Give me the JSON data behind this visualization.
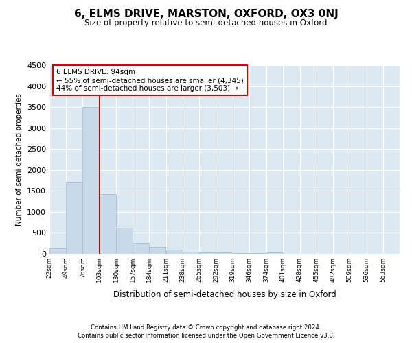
{
  "title": "6, ELMS DRIVE, MARSTON, OXFORD, OX3 0NJ",
  "subtitle": "Size of property relative to semi-detached houses in Oxford",
  "xlabel": "Distribution of semi-detached houses by size in Oxford",
  "ylabel": "Number of semi-detached properties",
  "footer_line1": "Contains HM Land Registry data © Crown copyright and database right 2024.",
  "footer_line2": "Contains public sector information licensed under the Open Government Licence v3.0.",
  "bar_color": "#c8d9ea",
  "bar_edge_color": "#a0b8cc",
  "fig_bg_color": "#ffffff",
  "plot_bg_color": "#dce8f2",
  "red_color": "#cc0000",
  "red_line_x": 103,
  "property_label": "6 ELMS DRIVE: 94sqm",
  "pct_smaller": 55,
  "count_smaller": "4,345",
  "pct_larger": 44,
  "count_larger": "3,503",
  "bin_starts": [
    22,
    49,
    76,
    103,
    130,
    157,
    184,
    211,
    238,
    265,
    292,
    319,
    346,
    374,
    401,
    428,
    455,
    482,
    509,
    536
  ],
  "bin_labels": [
    "22sqm",
    "49sqm",
    "76sqm",
    "103sqm",
    "130sqm",
    "157sqm",
    "184sqm",
    "211sqm",
    "238sqm",
    "265sqm",
    "292sqm",
    "319sqm",
    "346sqm",
    "374sqm",
    "401sqm",
    "428sqm",
    "455sqm",
    "482sqm",
    "509sqm",
    "536sqm",
    "563sqm"
  ],
  "bar_heights": [
    130,
    1700,
    3500,
    1430,
    630,
    255,
    160,
    95,
    55,
    40,
    30,
    20,
    15,
    40,
    5,
    5,
    3,
    3,
    2,
    2
  ],
  "bin_width": 27,
  "xlim": [
    22,
    590
  ],
  "ylim": [
    0,
    4500
  ],
  "yticks": [
    0,
    500,
    1000,
    1500,
    2000,
    2500,
    3000,
    3500,
    4000,
    4500
  ]
}
